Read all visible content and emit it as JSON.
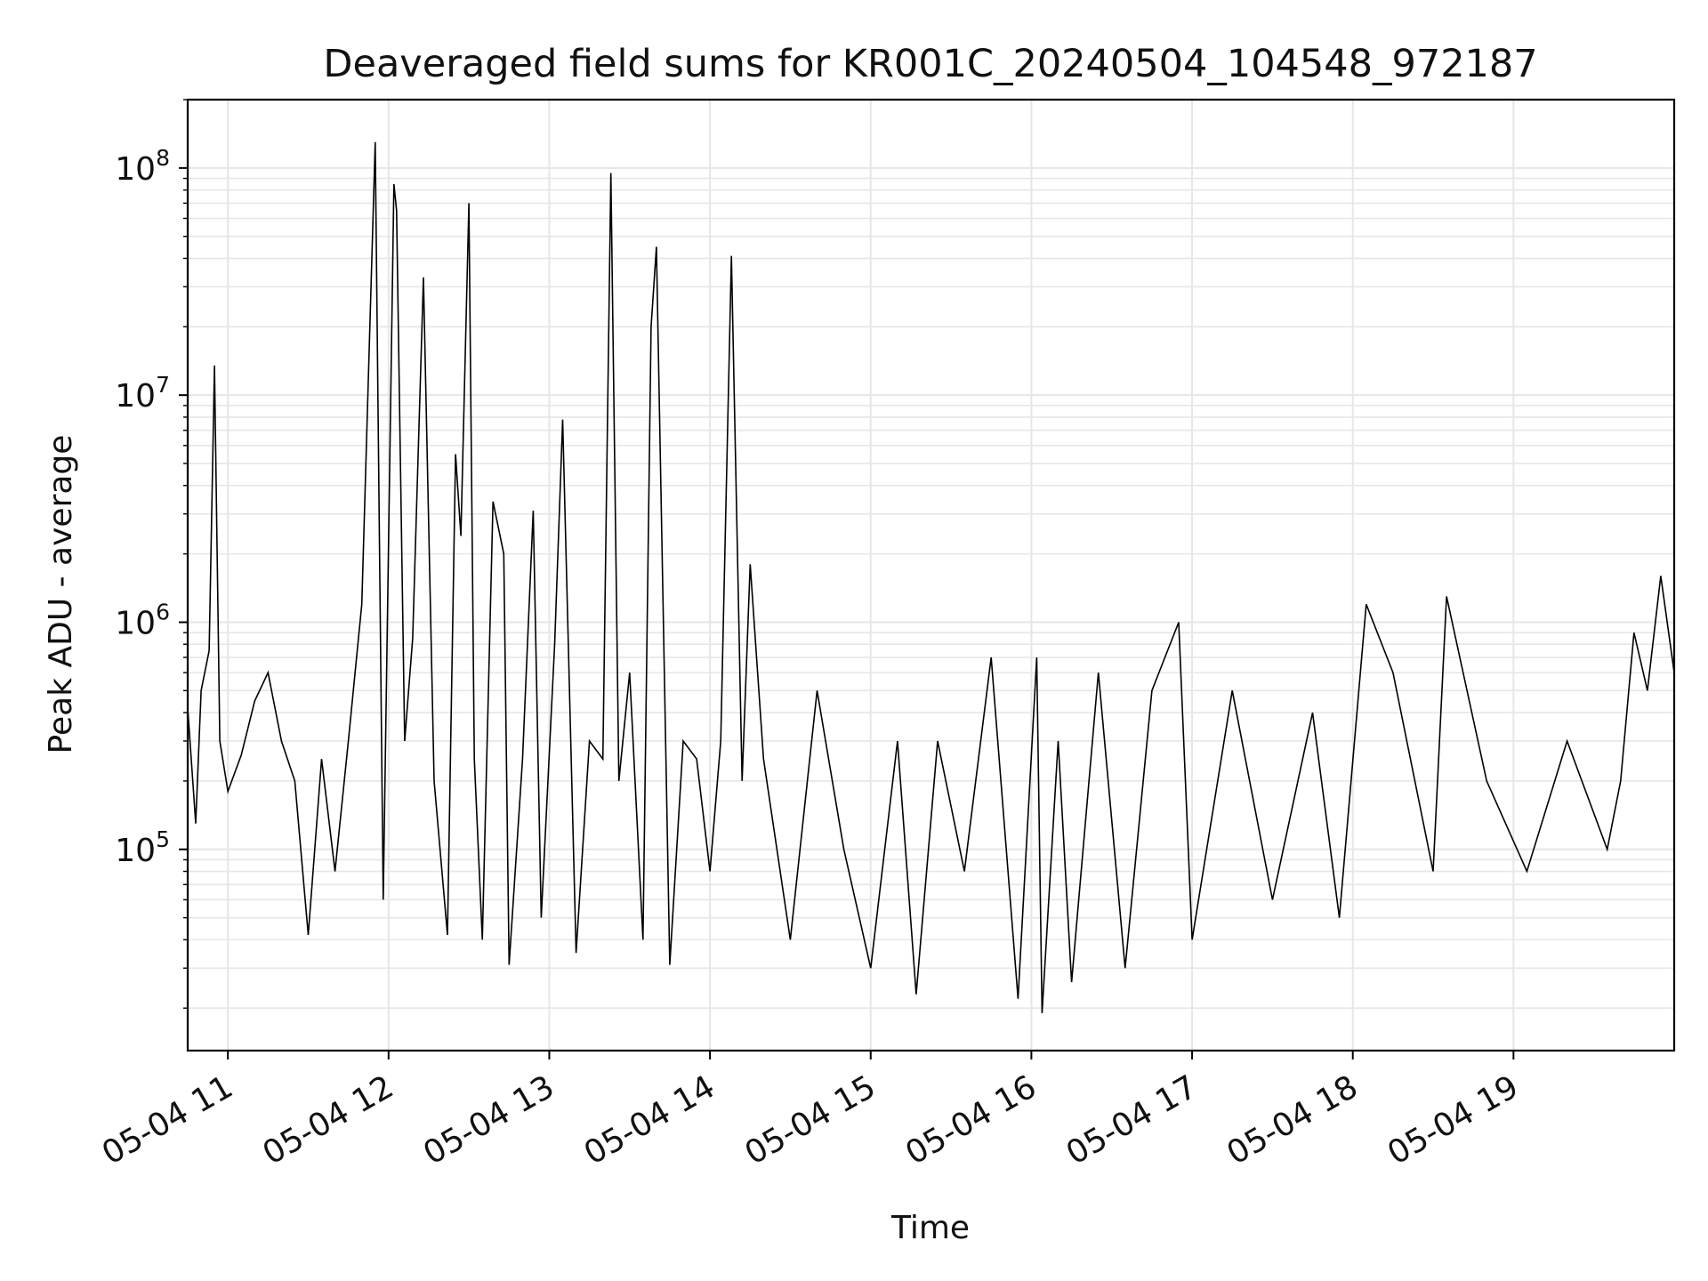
{
  "chart_data": {
    "type": "line",
    "title": "Deaveraged field sums for KR001C_20240504_104548_972187",
    "xlabel": "Time",
    "ylabel": "Peak ADU - average",
    "yscale": "log",
    "ylim": [
      13000,
      200000000
    ],
    "xlim": [
      "2024-05-04 10:45",
      "2024-05-04 20:00"
    ],
    "grid": true,
    "grid_color": "#e6e6e6",
    "line_color": "#000000",
    "x_ticks": [
      {
        "t": "2024-05-04 11:00",
        "label": "05-04 11"
      },
      {
        "t": "2024-05-04 12:00",
        "label": "05-04 12"
      },
      {
        "t": "2024-05-04 13:00",
        "label": "05-04 13"
      },
      {
        "t": "2024-05-04 14:00",
        "label": "05-04 14"
      },
      {
        "t": "2024-05-04 15:00",
        "label": "05-04 15"
      },
      {
        "t": "2024-05-04 16:00",
        "label": "05-04 16"
      },
      {
        "t": "2024-05-04 17:00",
        "label": "05-04 17"
      },
      {
        "t": "2024-05-04 18:00",
        "label": "05-04 18"
      },
      {
        "t": "2024-05-04 19:00",
        "label": "05-04 19"
      }
    ],
    "y_ticks": [
      {
        "value": 100000,
        "base": "10",
        "exp": "5"
      },
      {
        "value": 1000000,
        "base": "10",
        "exp": "6"
      },
      {
        "value": 10000000,
        "base": "10",
        "exp": "7"
      },
      {
        "value": 100000000,
        "base": "10",
        "exp": "8"
      }
    ],
    "series": [
      {
        "values": [
          [
            "2024-05-04 10:45",
            420000
          ],
          [
            "2024-05-04 10:48",
            130000
          ],
          [
            "2024-05-04 10:50",
            500000
          ],
          [
            "2024-05-04 10:53",
            750000
          ],
          [
            "2024-05-04 10:55",
            13500000
          ],
          [
            "2024-05-04 10:57",
            300000
          ],
          [
            "2024-05-04 11:00",
            180000
          ],
          [
            "2024-05-04 11:05",
            260000
          ],
          [
            "2024-05-04 11:10",
            450000
          ],
          [
            "2024-05-04 11:15",
            600000
          ],
          [
            "2024-05-04 11:20",
            300000
          ],
          [
            "2024-05-04 11:25",
            200000
          ],
          [
            "2024-05-04 11:30",
            42000
          ],
          [
            "2024-05-04 11:35",
            250000
          ],
          [
            "2024-05-04 11:40",
            80000
          ],
          [
            "2024-05-04 11:45",
            300000
          ],
          [
            "2024-05-04 11:50",
            1200000
          ],
          [
            "2024-05-04 11:55",
            130000000
          ],
          [
            "2024-05-04 11:58",
            60000
          ],
          [
            "2024-05-04 12:02",
            85000000
          ],
          [
            "2024-05-04 12:03",
            65000000
          ],
          [
            "2024-05-04 12:06",
            300000
          ],
          [
            "2024-05-04 12:09",
            850000
          ],
          [
            "2024-05-04 12:13",
            33000000
          ],
          [
            "2024-05-04 12:17",
            200000
          ],
          [
            "2024-05-04 12:22",
            42000
          ],
          [
            "2024-05-04 12:25",
            5500000
          ],
          [
            "2024-05-04 12:27",
            2400000
          ],
          [
            "2024-05-04 12:30",
            70000000
          ],
          [
            "2024-05-04 12:32",
            250000
          ],
          [
            "2024-05-04 12:35",
            40000
          ],
          [
            "2024-05-04 12:39",
            3400000
          ],
          [
            "2024-05-04 12:43",
            2000000
          ],
          [
            "2024-05-04 12:45",
            31000
          ],
          [
            "2024-05-04 12:50",
            250000
          ],
          [
            "2024-05-04 12:54",
            3100000
          ],
          [
            "2024-05-04 12:57",
            50000
          ],
          [
            "2024-05-04 13:02",
            800000
          ],
          [
            "2024-05-04 13:05",
            7800000
          ],
          [
            "2024-05-04 13:10",
            35000
          ],
          [
            "2024-05-04 13:15",
            300000
          ],
          [
            "2024-05-04 13:20",
            250000
          ],
          [
            "2024-05-04 13:23",
            95000000
          ],
          [
            "2024-05-04 13:26",
            200000
          ],
          [
            "2024-05-04 13:30",
            600000
          ],
          [
            "2024-05-04 13:35",
            40000
          ],
          [
            "2024-05-04 13:38",
            20000000
          ],
          [
            "2024-05-04 13:40",
            45000000
          ],
          [
            "2024-05-04 13:45",
            31000
          ],
          [
            "2024-05-04 13:50",
            300000
          ],
          [
            "2024-05-04 13:55",
            250000
          ],
          [
            "2024-05-04 14:00",
            80000
          ],
          [
            "2024-05-04 14:04",
            300000
          ],
          [
            "2024-05-04 14:08",
            41000000
          ],
          [
            "2024-05-04 14:12",
            200000
          ],
          [
            "2024-05-04 14:15",
            1800000
          ],
          [
            "2024-05-04 14:20",
            250000
          ],
          [
            "2024-05-04 14:30",
            40000
          ],
          [
            "2024-05-04 14:40",
            500000
          ],
          [
            "2024-05-04 14:50",
            100000
          ],
          [
            "2024-05-04 15:00",
            30000
          ],
          [
            "2024-05-04 15:10",
            300000
          ],
          [
            "2024-05-04 15:17",
            23000
          ],
          [
            "2024-05-04 15:25",
            300000
          ],
          [
            "2024-05-04 15:35",
            80000
          ],
          [
            "2024-05-04 15:45",
            700000
          ],
          [
            "2024-05-04 15:55",
            22000
          ],
          [
            "2024-05-04 16:02",
            700000
          ],
          [
            "2024-05-04 16:04",
            19000
          ],
          [
            "2024-05-04 16:10",
            300000
          ],
          [
            "2024-05-04 16:15",
            26000
          ],
          [
            "2024-05-04 16:25",
            600000
          ],
          [
            "2024-05-04 16:35",
            30000
          ],
          [
            "2024-05-04 16:45",
            500000
          ],
          [
            "2024-05-04 16:55",
            1000000
          ],
          [
            "2024-05-04 17:00",
            40000
          ],
          [
            "2024-05-04 17:15",
            500000
          ],
          [
            "2024-05-04 17:30",
            60000
          ],
          [
            "2024-05-04 17:45",
            400000
          ],
          [
            "2024-05-04 17:55",
            50000
          ],
          [
            "2024-05-04 18:05",
            1200000
          ],
          [
            "2024-05-04 18:15",
            600000
          ],
          [
            "2024-05-04 18:30",
            80000
          ],
          [
            "2024-05-04 18:35",
            1300000
          ],
          [
            "2024-05-04 18:50",
            200000
          ],
          [
            "2024-05-04 19:05",
            80000
          ],
          [
            "2024-05-04 19:20",
            300000
          ],
          [
            "2024-05-04 19:35",
            100000
          ],
          [
            "2024-05-04 19:40",
            200000
          ],
          [
            "2024-05-04 19:45",
            900000
          ],
          [
            "2024-05-04 19:50",
            500000
          ],
          [
            "2024-05-04 19:55",
            1600000
          ],
          [
            "2024-05-04 20:00",
            600000
          ]
        ]
      }
    ]
  }
}
